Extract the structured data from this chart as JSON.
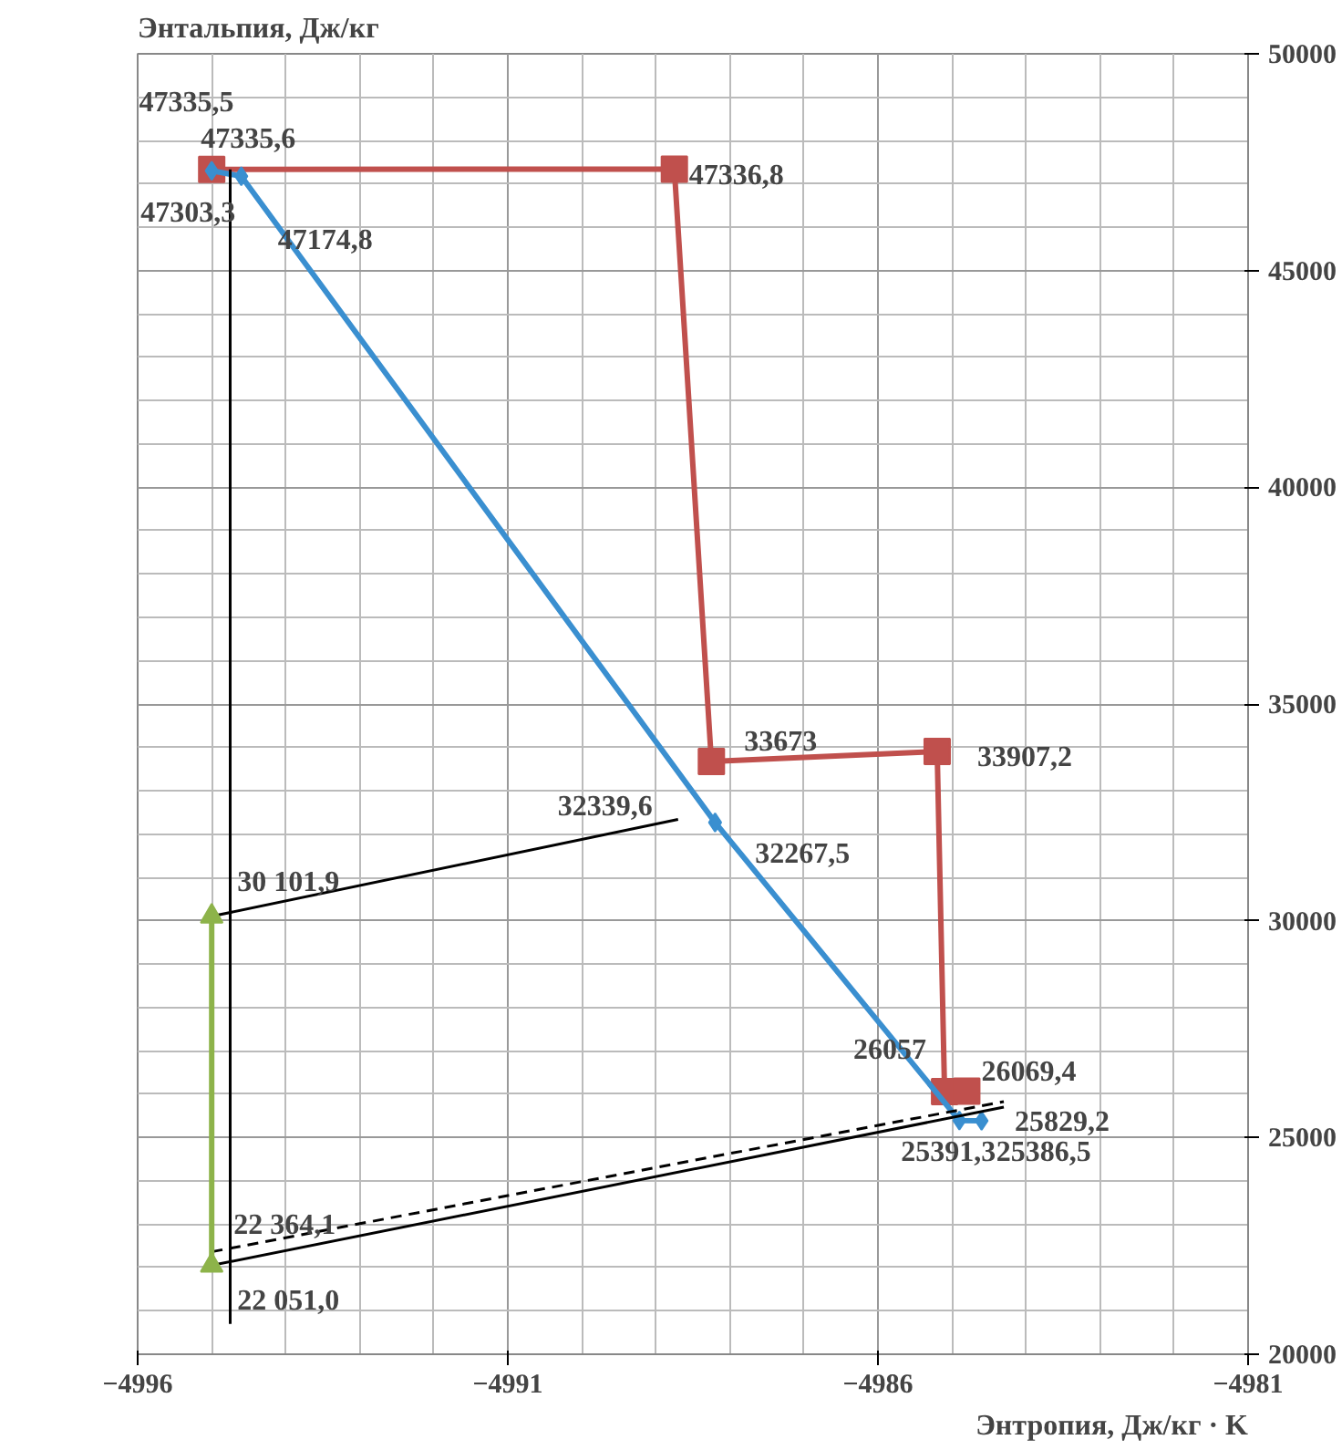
{
  "chart_data": {
    "type": "line",
    "xlabel": "Энтропия, Дж/кг · K",
    "ylabel": "Энтальпия, Дж/кг",
    "xlim": [
      -4996,
      -4981
    ],
    "xticks": [
      -4996,
      -4991,
      -4986,
      -4981
    ],
    "ylim": [
      20000,
      50000
    ],
    "yticks": [
      20000,
      25000,
      30000,
      35000,
      40000,
      45000,
      50000
    ],
    "grid": true,
    "series": [
      {
        "color": "#c0504d",
        "marker": "square",
        "x": [
          -4995.0,
          -4988.75,
          -4988.25,
          -4985.2,
          -4985.1,
          -4984.8
        ],
        "values": [
          47335.6,
          47336.8,
          33673,
          33907.2,
          26057,
          26069.4
        ],
        "value_labels": [
          "47335,6",
          "47336,8",
          "33673",
          "33907,2",
          "26057",
          "26069,4"
        ]
      },
      {
        "color": "#3a8fd0",
        "marker": "diamond",
        "x": [
          -4995.0,
          -4994.6,
          -4988.2,
          -4984.9,
          -4984.6
        ],
        "values": [
          47303.3,
          47174.8,
          32267.5,
          25391.3,
          25386.5
        ],
        "value_labels": [
          "47303,3",
          "47174,8",
          "32267,5",
          "25391,3",
          "25386,5"
        ]
      },
      {
        "color": "#000000",
        "marker": "none",
        "x": [
          -4994.75,
          -4994.75
        ],
        "values": [
          47335.5,
          20700
        ],
        "value_labels": [
          "47335,5",
          null
        ]
      },
      {
        "color": "#000000",
        "marker": "none",
        "x": [
          -4995.0,
          -4988.7
        ],
        "values": [
          30101.9,
          32339.6
        ],
        "value_labels": [
          "30 101,9",
          "32339,6"
        ]
      },
      {
        "color": "#000000",
        "marker": "none",
        "line_style": "dashed",
        "x": [
          -4995.0,
          -4984.3
        ],
        "values": [
          22364.1,
          25829.2
        ],
        "value_labels": [
          "22 364,1",
          "25829,2"
        ]
      },
      {
        "color": "#000000",
        "marker": "none",
        "x": [
          -4995.0,
          -4984.3
        ],
        "values": [
          22051.0,
          25700
        ],
        "value_labels": [
          "22 051,0",
          null
        ]
      },
      {
        "color": "#8db34a",
        "marker": "triangle",
        "x": [
          -4995.0,
          -4995.0
        ],
        "values": [
          22050,
          30100
        ],
        "value_labels": [
          null,
          null
        ]
      }
    ]
  }
}
